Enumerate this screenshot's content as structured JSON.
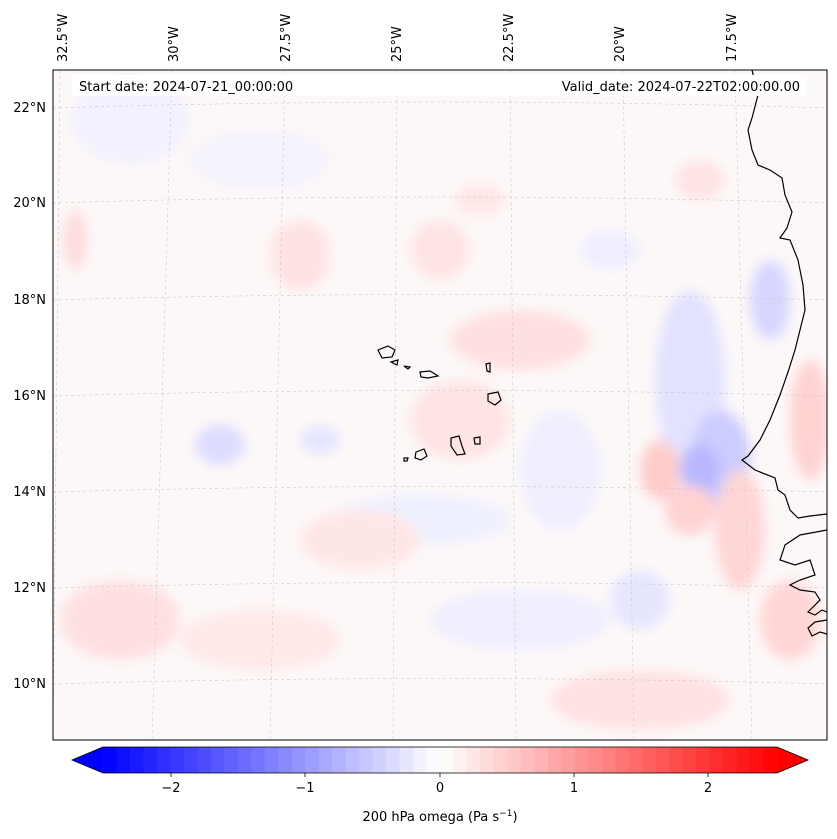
{
  "header": {
    "start_date": "Start date: 2024-07-21_00:00:00",
    "valid_date": "Valid_date: 2024-07-22T02:00:00.00"
  },
  "map": {
    "lon_labels": [
      "32.5°W",
      "30°W",
      "27.5°W",
      "25°W",
      "22.5°W",
      "20°W",
      "17.5°W"
    ],
    "lat_labels": [
      "22°N",
      "20°N",
      "18°N",
      "16°N",
      "14°N",
      "12°N",
      "10°N"
    ]
  },
  "colorbar": {
    "ticks": [
      "−2",
      "−1",
      "0",
      "1",
      "2"
    ],
    "label": "200 hPa omega (Pa s",
    "label_sup": "−1",
    "label_end": ")",
    "negative_color": "#0000ff",
    "positive_color": "#ff0000"
  }
}
